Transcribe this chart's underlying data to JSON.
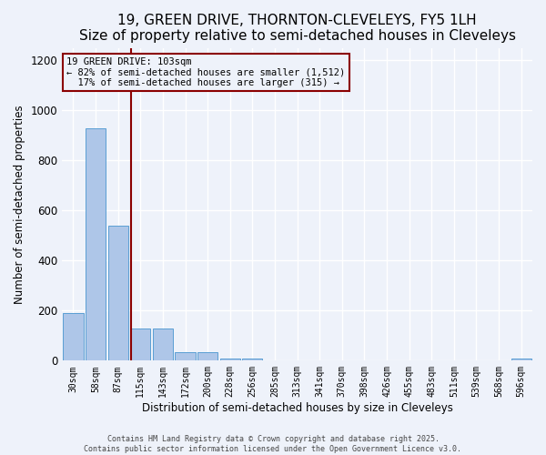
{
  "title": "19, GREEN DRIVE, THORNTON-CLEVELEYS, FY5 1LH",
  "subtitle": "Size of property relative to semi-detached houses in Cleveleys",
  "xlabel": "Distribution of semi-detached houses by size in Cleveleys",
  "ylabel": "Number of semi-detached properties",
  "bar_labels": [
    "30sqm",
    "58sqm",
    "87sqm",
    "115sqm",
    "143sqm",
    "172sqm",
    "200sqm",
    "228sqm",
    "256sqm",
    "285sqm",
    "313sqm",
    "341sqm",
    "370sqm",
    "398sqm",
    "426sqm",
    "455sqm",
    "483sqm",
    "511sqm",
    "539sqm",
    "568sqm",
    "596sqm"
  ],
  "bar_values": [
    190,
    930,
    540,
    130,
    130,
    35,
    35,
    10,
    10,
    0,
    0,
    0,
    0,
    0,
    0,
    0,
    0,
    0,
    0,
    0,
    10
  ],
  "bar_color": "#aec6e8",
  "bar_edge_color": "#5a9fd4",
  "background_color": "#eef2fa",
  "grid_color": "#ffffff",
  "vline_color": "#8b0000",
  "annotation_text": "19 GREEN DRIVE: 103sqm\n← 82% of semi-detached houses are smaller (1,512)\n  17% of semi-detached houses are larger (315) →",
  "annotation_box_color": "#8b0000",
  "ylim": [
    0,
    1250
  ],
  "yticks": [
    0,
    200,
    400,
    600,
    800,
    1000,
    1200
  ],
  "footer_text": "Contains HM Land Registry data © Crown copyright and database right 2025.\nContains public sector information licensed under the Open Government Licence v3.0.",
  "title_fontsize": 11,
  "subtitle_fontsize": 9.5
}
